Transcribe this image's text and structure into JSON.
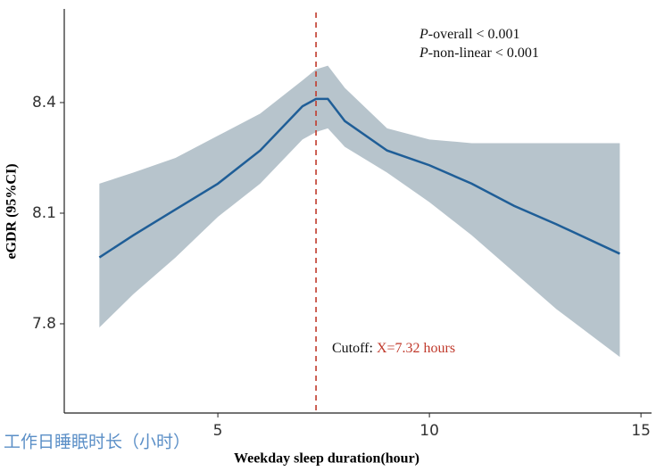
{
  "chart_data": {
    "type": "line",
    "x_label": "Weekday sleep duration(hour)",
    "y_label": "eGDR (95%CI)",
    "overlay_text": "工作日睡眠时长（小时）",
    "annotations": [
      {
        "italic": "P",
        "text": "-overall < 0.001"
      },
      {
        "italic": "P",
        "text": "-non-linear < 0.001"
      }
    ],
    "cutoff": {
      "label": "Cutoff: ",
      "value_label": "X=7.32 hours",
      "x": 7.32,
      "color": "#c0392b"
    },
    "x": [
      2.2,
      3,
      4,
      5,
      6,
      7,
      7.32,
      7.6,
      8,
      9,
      10,
      11,
      12,
      13,
      14.5
    ],
    "values": [
      7.98,
      8.04,
      8.11,
      8.18,
      8.27,
      8.39,
      8.41,
      8.41,
      8.35,
      8.27,
      8.23,
      8.18,
      8.12,
      8.07,
      7.99
    ],
    "upper": [
      8.18,
      8.21,
      8.25,
      8.31,
      8.37,
      8.46,
      8.49,
      8.5,
      8.44,
      8.33,
      8.3,
      8.29,
      8.29,
      8.29,
      8.29
    ],
    "lower": [
      7.79,
      7.88,
      7.98,
      8.09,
      8.18,
      8.3,
      8.32,
      8.33,
      8.28,
      8.21,
      8.13,
      8.04,
      7.94,
      7.84,
      7.71
    ],
    "color": "#1f5e97",
    "band_color": "#b7c4cc",
    "xlim": [
      1.37,
      15.25
    ],
    "ylim": [
      7.558,
      8.654
    ],
    "xticks": [
      5,
      10,
      15
    ],
    "yticks": [
      7.8,
      8.1,
      8.4
    ],
    "grid": false
  }
}
